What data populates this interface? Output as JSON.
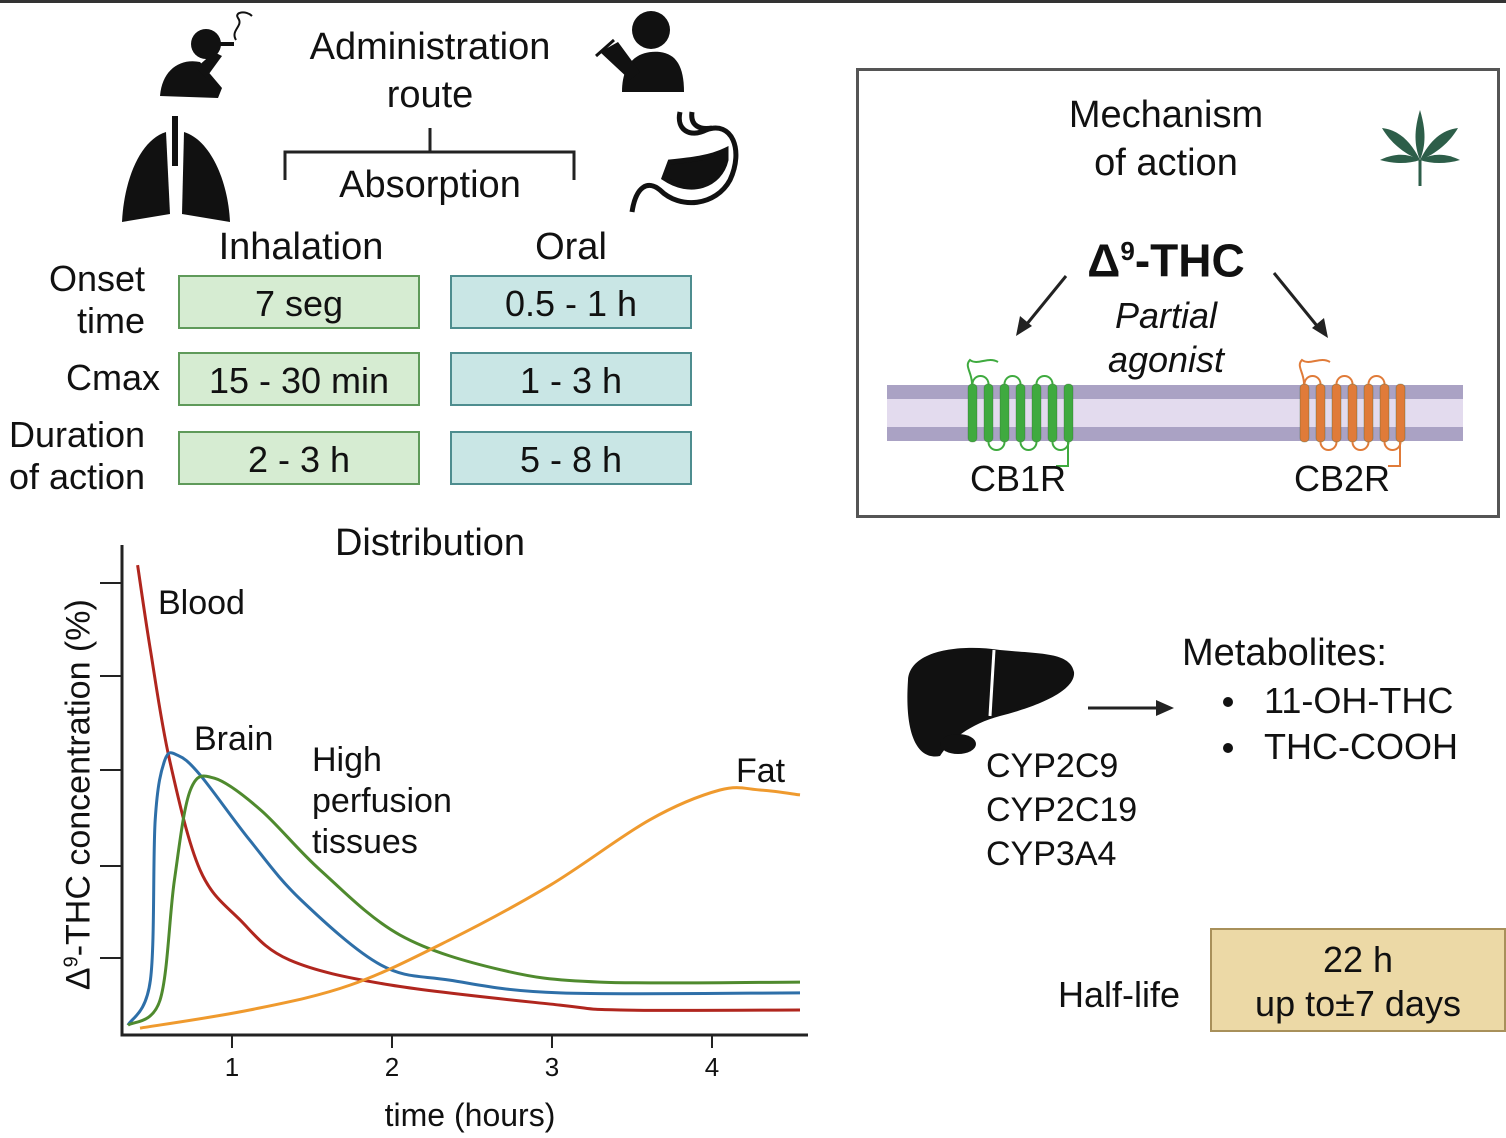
{
  "administration": {
    "title_line1": "Administration",
    "title_line2": "route",
    "absorption": "Absorption",
    "columns": [
      "Inhalation",
      "Oral"
    ],
    "rows": [
      {
        "label_line1": "Onset",
        "label_line2": "time",
        "inhalation": "7 seg",
        "oral": "0.5 - 1 h"
      },
      {
        "label_line1": "Cmax",
        "label_line2": "",
        "inhalation": "15 - 30 min",
        "oral": "1 - 3 h"
      },
      {
        "label_line1": "Duration",
        "label_line2": "of action",
        "inhalation": "2 - 3 h",
        "oral": "5 - 8 h"
      }
    ],
    "icons": [
      "smoking-person-icon",
      "eating-person-icon",
      "lungs-icon",
      "stomach-icon"
    ],
    "colors": {
      "inhalation_fill": "#d6ecd2",
      "oral_fill": "#c9e6e5"
    }
  },
  "mechanism": {
    "title_line1": "Mechanism",
    "title_line2": "of action",
    "drug": "Δ⁹-THC",
    "drug_base": "Δ",
    "drug_sup": "9",
    "drug_rest": "-THC",
    "relation_line1": "Partial",
    "relation_line2": "agonist",
    "receptors": [
      {
        "name": "CB1R",
        "color": "#3faa3f"
      },
      {
        "name": "CB2R",
        "color": "#e07b39"
      }
    ],
    "icon": "cannabis-leaf-icon"
  },
  "metabolism": {
    "enzymes": [
      "CYP2C9",
      "CYP2C19",
      "CYP3A4"
    ],
    "metabolites_title": "Metabolites:",
    "metabolites": [
      "11-OH-THC",
      "THC-COOH"
    ],
    "icon": "liver-icon",
    "half_life_label": "Half-life",
    "half_life_line1": "22 h",
    "half_life_line2": "up to±7 days"
  },
  "chart_data": {
    "type": "line",
    "title": "Distribution",
    "xlabel": "time (hours)",
    "ylabel": "Δ⁹-THC concentration (%)",
    "ylabel_base": "Δ",
    "ylabel_sup": "9",
    "ylabel_rest": "-THC concentration (%)",
    "x_ticks": [
      "1",
      "2",
      "3",
      "4"
    ],
    "xlim": [
      0.3,
      4.6
    ],
    "ylim": [
      0,
      100
    ],
    "grid": false,
    "series": [
      {
        "name": "Blood",
        "color": "#b0261e",
        "points": [
          [
            0.41,
            95.9
          ],
          [
            0.49,
            78.6
          ],
          [
            0.61,
            56.1
          ],
          [
            0.8,
            33.7
          ],
          [
            1.05,
            23.5
          ],
          [
            1.36,
            15.3
          ],
          [
            1.99,
            10.2
          ],
          [
            3.05,
            6.1
          ],
          [
            3.43,
            5.1
          ],
          [
            4.55,
            5.1
          ]
        ]
      },
      {
        "name": "Brain",
        "color": "#2e6fa8",
        "points": [
          [
            0.35,
            2
          ],
          [
            0.49,
            11.2
          ],
          [
            0.52,
            43.9
          ],
          [
            0.58,
            56.1
          ],
          [
            0.66,
            57.1
          ],
          [
            0.8,
            53.1
          ],
          [
            1.11,
            39.8
          ],
          [
            1.43,
            27.6
          ],
          [
            1.93,
            14.3
          ],
          [
            2.36,
            11.2
          ],
          [
            3.05,
            8.6
          ],
          [
            4.55,
            8.6
          ]
        ]
      },
      {
        "name": "High perfusion tissues",
        "label_lines": [
          "High",
          "perfusion",
          "tissues"
        ],
        "color": "#4f8a2e",
        "points": [
          [
            0.35,
            2
          ],
          [
            0.55,
            7.1
          ],
          [
            0.64,
            31.6
          ],
          [
            0.74,
            50
          ],
          [
            0.89,
            52.4
          ],
          [
            1.18,
            45.9
          ],
          [
            1.55,
            33.7
          ],
          [
            2.05,
            20.4
          ],
          [
            2.68,
            13.3
          ],
          [
            3.3,
            10.8
          ],
          [
            4.55,
            10.8
          ]
        ]
      },
      {
        "name": "Fat",
        "color": "#ef9a2e",
        "points": [
          [
            0.425,
            1.4
          ],
          [
            1.11,
            5.1
          ],
          [
            1.74,
            10.2
          ],
          [
            2.36,
            19.4
          ],
          [
            2.99,
            30.6
          ],
          [
            3.61,
            43.9
          ],
          [
            4.05,
            50
          ],
          [
            4.3,
            50
          ],
          [
            4.55,
            49
          ]
        ]
      }
    ]
  }
}
